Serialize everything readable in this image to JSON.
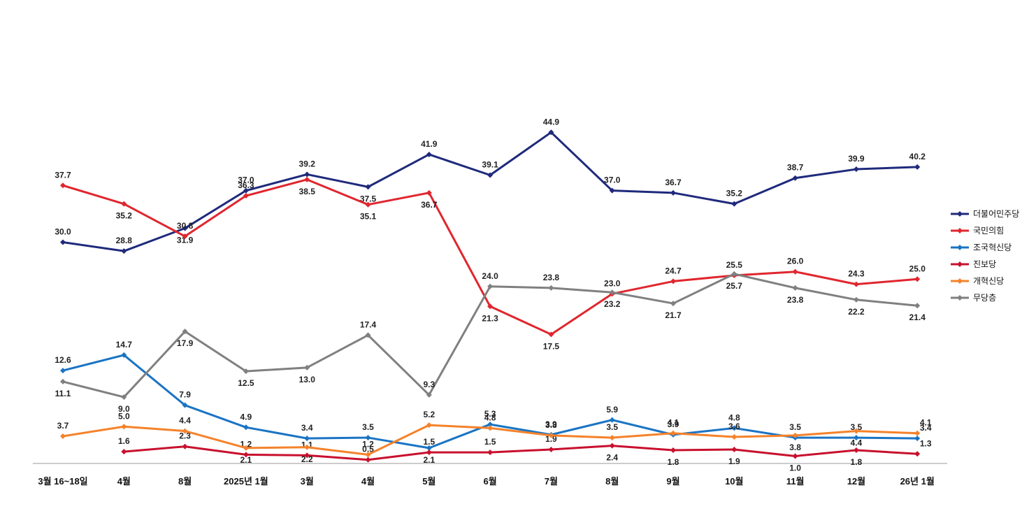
{
  "chart_data": {
    "type": "line",
    "title": "",
    "xlabel": "",
    "ylabel": "",
    "ylim": [
      0,
      48
    ],
    "grid": false,
    "legend_position": "right",
    "categories": [
      "3월 16~18일",
      "4월",
      "8월",
      "2025년 1월",
      "3월",
      "4월",
      "5월",
      "6월",
      "7월",
      "8월",
      "9월",
      "10월",
      "11월",
      "12월",
      "26년 1월"
    ],
    "series": [
      {
        "name": "더불어민주당",
        "color": "#1f2a7c",
        "values": [
          30.0,
          28.8,
          31.9,
          37.0,
          39.2,
          37.5,
          41.9,
          39.1,
          44.9,
          37.0,
          36.7,
          35.2,
          38.7,
          39.9,
          40.2
        ],
        "labels": [
          "30.0",
          "28.8",
          "31.9",
          "37.0",
          "39.2",
          "37.5",
          "41.9",
          "39.1",
          "44.9",
          "37.0",
          "36.7",
          "35.2",
          "38.7",
          "39.9",
          "40.2"
        ]
      },
      {
        "name": "국민의힘",
        "color": "#e0262e",
        "values": [
          37.7,
          35.2,
          30.8,
          36.3,
          38.5,
          35.1,
          36.7,
          21.3,
          17.5,
          23.0,
          24.7,
          25.5,
          26.0,
          24.3,
          25.0
        ],
        "labels": [
          "37.7",
          "35.2",
          "30.8",
          "36.3",
          "38.5",
          "35.1",
          "36.7",
          "21.3",
          "17.5",
          "23.0",
          "24.7",
          "25.5",
          "26.0",
          "24.3",
          "25.0"
        ]
      },
      {
        "name": "조국혁신당",
        "color": "#1a74c4",
        "values": [
          12.6,
          14.7,
          7.9,
          4.9,
          3.4,
          3.5,
          2.1,
          5.3,
          3.9,
          5.9,
          3.9,
          4.8,
          3.5,
          3.5,
          3.4
        ],
        "labels": [
          "12.6",
          "14.7",
          "7.9",
          "4.9",
          "3.4",
          "3.5",
          "2.1",
          "5.3",
          "3.9",
          "5.9",
          "3.9",
          "4.8",
          "3.5",
          "3.5",
          "3.4"
        ]
      },
      {
        "name": "진보당",
        "color": "#c8102e",
        "values": [
          null,
          1.6,
          2.3,
          1.2,
          1.1,
          0.5,
          1.5,
          1.5,
          1.9,
          2.4,
          1.8,
          1.9,
          1.0,
          1.8,
          1.3
        ],
        "labels": [
          "",
          "1.6",
          "2.3",
          "1.2",
          "1.1",
          "0.5",
          "1.5",
          "1.5",
          "1.9",
          "2.4",
          "1.8",
          "1.9",
          "1.0",
          "1.8",
          "1.3"
        ]
      },
      {
        "name": "개혁신당",
        "color": "#f5822a",
        "values": [
          3.7,
          5.0,
          4.4,
          2.1,
          2.2,
          1.2,
          5.2,
          4.8,
          3.8,
          3.5,
          4.1,
          3.6,
          3.8,
          4.4,
          4.1
        ],
        "labels": [
          "3.7",
          "5.0",
          "4.4",
          "2.1",
          "2.2",
          "1.2",
          "5.2",
          "4.8",
          "3.8",
          "3.5",
          "4.1",
          "3.6",
          "3.8",
          "4.4",
          "4.1"
        ]
      },
      {
        "name": "무당층",
        "color": "#808080",
        "values": [
          11.1,
          9.0,
          17.9,
          12.5,
          13.0,
          17.4,
          9.3,
          24.0,
          23.8,
          23.2,
          21.7,
          25.7,
          23.8,
          22.2,
          21.4
        ],
        "labels": [
          "11.1",
          "9.0",
          "17.9",
          "12.5",
          "13.0",
          "17.4",
          "9.3",
          "24.0",
          "23.8",
          "23.2",
          "21.7",
          "25.7",
          "23.8",
          "22.2",
          "21.4"
        ]
      }
    ]
  }
}
